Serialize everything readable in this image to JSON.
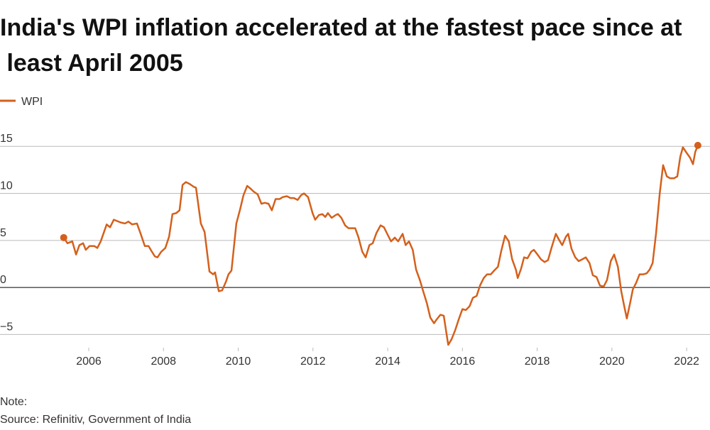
{
  "chart_data": {
    "type": "line",
    "title": "India's WPI inflation accelerated at the fastest pace since at least April 2005",
    "note": "Note:",
    "source": "Source: Refinitiv, Government of India",
    "x": [
      2005.33,
      2005.43,
      2005.56,
      2005.66,
      2005.75,
      2005.85,
      2005.92,
      2006.02,
      2006.15,
      2006.23,
      2006.32,
      2006.48,
      2006.57,
      2006.67,
      2006.86,
      2006.97,
      2007.06,
      2007.16,
      2007.29,
      2007.39,
      2007.5,
      2007.6,
      2007.69,
      2007.77,
      2007.84,
      2007.94,
      2008.05,
      2008.15,
      2008.24,
      2008.34,
      2008.43,
      2008.51,
      2008.6,
      2008.7,
      2008.81,
      2008.87,
      2009.0,
      2009.1,
      2009.23,
      2009.33,
      2009.38,
      2009.48,
      2009.57,
      2009.67,
      2009.74,
      2009.82,
      2009.95,
      2010.05,
      2010.14,
      2010.24,
      2010.33,
      2010.41,
      2010.52,
      2010.62,
      2010.71,
      2010.81,
      2010.9,
      2011.0,
      2011.11,
      2011.19,
      2011.3,
      2011.4,
      2011.49,
      2011.59,
      2011.68,
      2011.76,
      2011.87,
      2011.99,
      2012.06,
      2012.16,
      2012.25,
      2012.33,
      2012.4,
      2012.5,
      2012.61,
      2012.67,
      2012.76,
      2012.86,
      2012.95,
      2013.13,
      2013.22,
      2013.32,
      2013.41,
      2013.51,
      2013.6,
      2013.7,
      2013.81,
      2013.9,
      2014.0,
      2014.09,
      2014.19,
      2014.28,
      2014.4,
      2014.48,
      2014.57,
      2014.67,
      2014.76,
      2014.86,
      2014.95,
      2015.05,
      2015.14,
      2015.24,
      2015.31,
      2015.41,
      2015.5,
      2015.62,
      2015.71,
      2015.81,
      2015.9,
      2016.0,
      2016.09,
      2016.19,
      2016.28,
      2016.38,
      2016.47,
      2016.57,
      2016.66,
      2016.76,
      2016.85,
      2016.95,
      2017.04,
      2017.14,
      2017.24,
      2017.33,
      2017.43,
      2017.48,
      2017.57,
      2017.65,
      2017.74,
      2017.84,
      2017.91,
      2018.01,
      2018.1,
      2018.2,
      2018.29,
      2018.39,
      2018.5,
      2018.58,
      2018.67,
      2018.77,
      2018.83,
      2018.92,
      2019.02,
      2019.11,
      2019.21,
      2019.3,
      2019.4,
      2019.49,
      2019.59,
      2019.68,
      2019.78,
      2019.87,
      2019.97,
      2020.06,
      2020.16,
      2020.25,
      2020.33,
      2020.4,
      2020.5,
      2020.56,
      2020.65,
      2020.74,
      2020.84,
      2020.93,
      2021.01,
      2021.09,
      2021.18,
      2021.28,
      2021.37,
      2021.47,
      2021.56,
      2021.66,
      2021.75,
      2021.83,
      2021.9,
      2022.0,
      2022.09,
      2022.17,
      2022.23,
      2022.3
    ],
    "series": [
      {
        "name": "WPI",
        "color": "#d4601c",
        "values": [
          5.3,
          4.7,
          4.9,
          3.5,
          4.5,
          4.7,
          4.0,
          4.4,
          4.4,
          4.2,
          4.9,
          6.7,
          6.4,
          7.2,
          6.9,
          6.8,
          7.0,
          6.7,
          6.8,
          5.7,
          4.4,
          4.4,
          3.8,
          3.3,
          3.2,
          3.8,
          4.2,
          5.4,
          7.8,
          7.9,
          8.2,
          10.9,
          11.2,
          11.0,
          10.7,
          10.6,
          6.8,
          5.9,
          1.7,
          1.4,
          1.6,
          -0.4,
          -0.3,
          0.6,
          1.4,
          1.8,
          6.8,
          8.3,
          9.8,
          10.8,
          10.5,
          10.2,
          9.9,
          8.9,
          9.0,
          8.9,
          8.2,
          9.4,
          9.4,
          9.6,
          9.7,
          9.5,
          9.5,
          9.3,
          9.8,
          10.0,
          9.6,
          7.9,
          7.2,
          7.7,
          7.8,
          7.5,
          7.9,
          7.4,
          7.7,
          7.8,
          7.4,
          6.6,
          6.3,
          6.3,
          5.3,
          3.8,
          3.2,
          4.5,
          4.7,
          5.8,
          6.6,
          6.4,
          5.6,
          4.9,
          5.3,
          4.9,
          5.7,
          4.5,
          4.9,
          4.0,
          1.9,
          0.8,
          -0.4,
          -1.7,
          -3.2,
          -3.8,
          -3.4,
          -2.9,
          -3.0,
          -6.1,
          -5.5,
          -4.5,
          -3.4,
          -2.3,
          -2.4,
          -2.0,
          -1.1,
          -0.9,
          0.2,
          1.0,
          1.4,
          1.4,
          1.8,
          2.2,
          3.9,
          5.5,
          4.9,
          3.0,
          1.9,
          1.0,
          2.0,
          3.2,
          3.1,
          3.8,
          4.0,
          3.5,
          3.0,
          2.7,
          2.9,
          4.3,
          5.7,
          5.1,
          4.5,
          5.4,
          5.7,
          4.1,
          3.2,
          2.8,
          3.0,
          3.2,
          2.6,
          1.3,
          1.1,
          0.2,
          0.1,
          0.8,
          2.8,
          3.5,
          2.2,
          -0.4,
          -2.0,
          -3.3,
          -1.4,
          -0.2,
          0.5,
          1.4,
          1.4,
          1.5,
          1.9,
          2.6,
          5.7,
          10.0,
          13.0,
          11.8,
          11.6,
          11.6,
          11.8,
          13.9,
          14.9,
          14.3,
          13.8,
          13.1,
          14.4,
          15.1
        ]
      }
    ],
    "xlim": [
      2003.625,
      2022.625
    ],
    "xticks": [
      2006,
      2008,
      2010,
      2012,
      2014,
      2016,
      2018,
      2020,
      2022
    ],
    "ylim": [
      -6.4,
      16.6
    ],
    "yticks": [
      {
        "value": -5,
        "label": "−5"
      },
      0,
      5,
      10,
      15
    ],
    "grid": true
  }
}
